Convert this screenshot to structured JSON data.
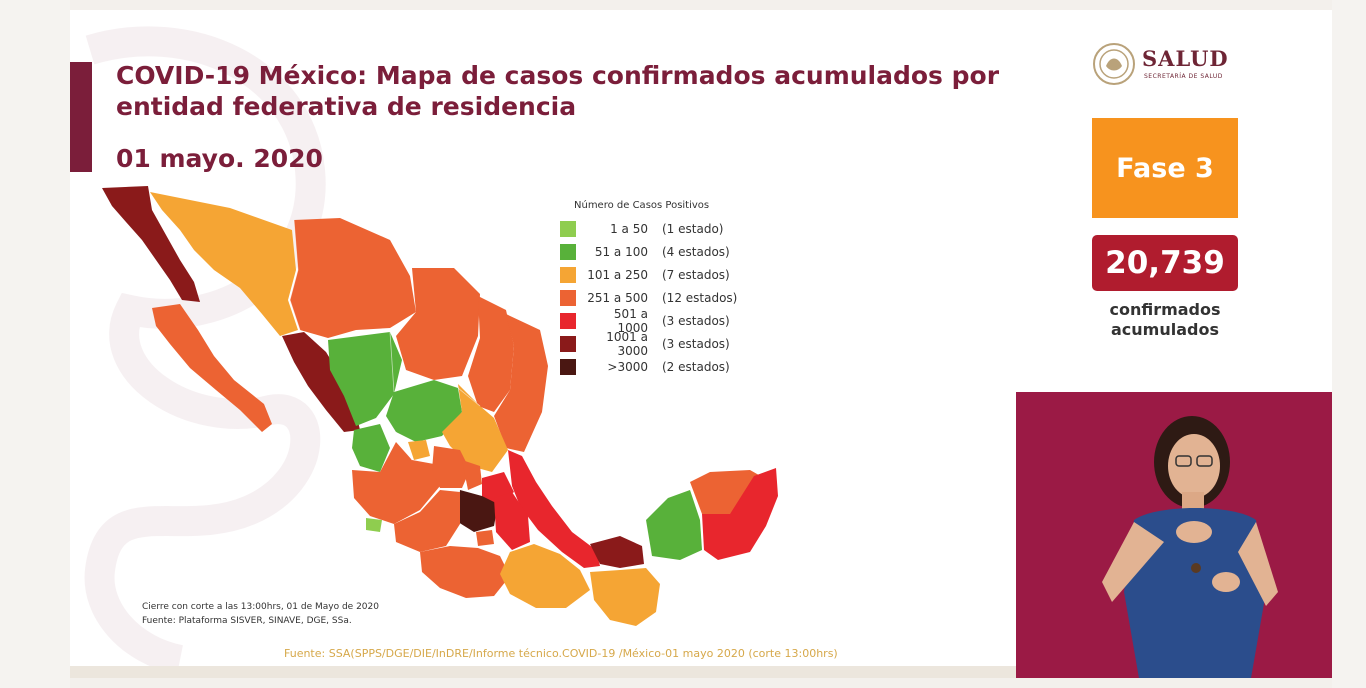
{
  "title": "COVID-19 México: Mapa de casos confirmados acumulados por entidad federativa de residencia",
  "date": "01 mayo. 2020",
  "logo": {
    "name": "SALUD",
    "subtitle": "SECRETARÍA DE SALUD"
  },
  "phase": "Fase 3",
  "confirmed": {
    "value": "20,739",
    "label": "confirmados acumulados"
  },
  "legend": {
    "title": "Número de Casos Positivos",
    "items": [
      {
        "range": "1 a 50",
        "count": "(1 estado)",
        "color": "#8fcd4f"
      },
      {
        "range": "51 a 100",
        "count": "(4 estados)",
        "color": "#58b13a"
      },
      {
        "range": "101 a 250",
        "count": "(7 estados)",
        "color": "#f5a534"
      },
      {
        "range": "251 a 500",
        "count": "(12 estados)",
        "color": "#ec6333"
      },
      {
        "range": "501 a 1000",
        "count": "(3 estados)",
        "color": "#e8262d"
      },
      {
        "range": "1001 a 3000",
        "count": "(3 estados)",
        "color": "#8a1a1a"
      },
      {
        "range": ">3000",
        "count": "(2 estados)",
        "color": "#4a1712"
      }
    ]
  },
  "notes": {
    "cutoff": "Cierre con corte a las 13:00hrs, 01 de Mayo de 2020",
    "source": "Fuente: Plataforma SISVER, SINAVE, DGE, SSa."
  },
  "footer": "Fuente: SSA(SPPS/DGE/DIE/InDRE/Informe técnico.COVID-19 /México-01 mayo 2020 (corte 13:00hrs)",
  "colors": {
    "brand": "#7b1e3a",
    "phase": "#f7931e",
    "count": "#b01c2e",
    "video_bg": "#9b1a45"
  }
}
